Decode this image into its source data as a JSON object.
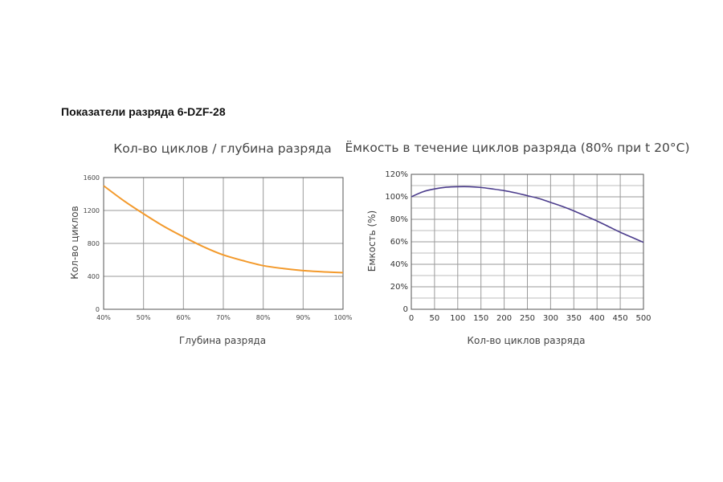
{
  "page": {
    "title": "Показатели разряда 6-DZF-28"
  },
  "chart_data": [
    {
      "type": "line",
      "title": "Кол-во циклов / глубина разряда",
      "xlabel": "Глубина разряда",
      "ylabel": "Кол-во циклов",
      "x_ticks": [
        "40%",
        "50%",
        "60%",
        "70%",
        "80%",
        "90%",
        "100%"
      ],
      "y_ticks": [
        "0",
        "400",
        "800",
        "1200",
        "1600"
      ],
      "xlim": [
        40,
        100
      ],
      "ylim": [
        0,
        1600
      ],
      "grid": true,
      "series": [
        {
          "color": "#f39a2c",
          "x": [
            40,
            45,
            50,
            55,
            60,
            65,
            70,
            75,
            80,
            85,
            90,
            95,
            100
          ],
          "y": [
            1500,
            1320,
            1160,
            1010,
            880,
            760,
            660,
            590,
            530,
            495,
            470,
            455,
            445
          ]
        }
      ]
    },
    {
      "type": "line",
      "title": "Ёмкость в течение циклов разряда (80% при t 20°С)",
      "xlabel": "Кол-во циклов разряда",
      "ylabel": "Емкость (%)",
      "x_ticks": [
        "0",
        "50",
        "100",
        "150",
        "200",
        "250",
        "300",
        "350",
        "400",
        "450",
        "500"
      ],
      "y_ticks": [
        "0",
        "20%",
        "40%",
        "60%",
        "80%",
        "100%",
        "120%"
      ],
      "xlim": [
        0,
        500
      ],
      "ylim": [
        0,
        120
      ],
      "grid": true,
      "series": [
        {
          "color": "#4b3c8c",
          "x": [
            0,
            25,
            50,
            75,
            100,
            125,
            150,
            175,
            200,
            225,
            250,
            275,
            300,
            325,
            350,
            375,
            400,
            425,
            450,
            475,
            500
          ],
          "y": [
            100,
            104.5,
            107,
            108.5,
            109,
            109,
            108.3,
            107,
            105.5,
            103.5,
            101,
            98.5,
            95,
            91.5,
            87.5,
            83,
            78.5,
            73.5,
            68.5,
            64,
            59.5
          ]
        }
      ]
    }
  ]
}
